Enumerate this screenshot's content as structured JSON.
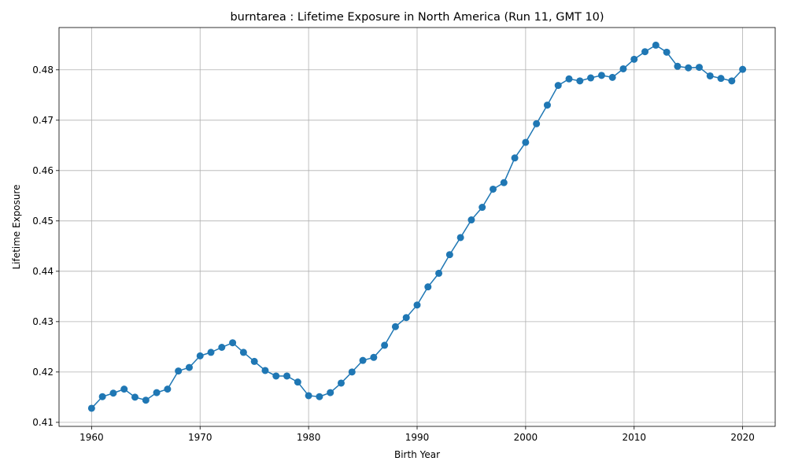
{
  "chart_data": {
    "type": "line",
    "title": "burntarea : Lifetime Exposure in North America (Run 11, GMT 10)",
    "xlabel": "Birth Year",
    "ylabel": "Lifetime Exposure",
    "xlim": [
      1957,
      2023
    ],
    "ylim": [
      0.4092,
      0.4884
    ],
    "xticks": [
      1960,
      1970,
      1980,
      1990,
      2000,
      2010,
      2020
    ],
    "yticks": [
      0.41,
      0.42,
      0.43,
      0.44,
      0.45,
      0.46,
      0.47,
      0.48
    ],
    "ytick_labels": [
      "0.41",
      "0.42",
      "0.43",
      "0.44",
      "0.45",
      "0.46",
      "0.47",
      "0.48"
    ],
    "grid": true,
    "legend": "none",
    "series": [
      {
        "color": "#1f77b4",
        "marker": "circle",
        "x": [
          1960,
          1961,
          1962,
          1963,
          1964,
          1965,
          1966,
          1967,
          1968,
          1969,
          1970,
          1971,
          1972,
          1973,
          1974,
          1975,
          1976,
          1977,
          1978,
          1979,
          1980,
          1981,
          1982,
          1983,
          1984,
          1985,
          1986,
          1987,
          1988,
          1989,
          1990,
          1991,
          1992,
          1993,
          1994,
          1995,
          1996,
          1997,
          1998,
          1999,
          2000,
          2001,
          2002,
          2003,
          2004,
          2005,
          2006,
          2007,
          2008,
          2009,
          2010,
          2011,
          2012,
          2013,
          2014,
          2015,
          2016,
          2017,
          2018,
          2019,
          2020
        ],
        "y": [
          0.4128,
          0.4151,
          0.4158,
          0.4166,
          0.415,
          0.4144,
          0.4159,
          0.4166,
          0.4202,
          0.4209,
          0.4232,
          0.4239,
          0.4249,
          0.4258,
          0.4239,
          0.4221,
          0.4203,
          0.4192,
          0.4192,
          0.418,
          0.4153,
          0.4151,
          0.4159,
          0.4178,
          0.42,
          0.4223,
          0.4229,
          0.4253,
          0.429,
          0.4308,
          0.4333,
          0.4369,
          0.4396,
          0.4433,
          0.4467,
          0.4502,
          0.4527,
          0.4563,
          0.4576,
          0.4625,
          0.4656,
          0.4693,
          0.473,
          0.4769,
          0.4782,
          0.4778,
          0.4784,
          0.4789,
          0.4785,
          0.4802,
          0.4821,
          0.4836,
          0.4849,
          0.4835,
          0.4807,
          0.4804,
          0.4805,
          0.4788,
          0.4783,
          0.4778,
          0.4801
        ]
      }
    ]
  }
}
